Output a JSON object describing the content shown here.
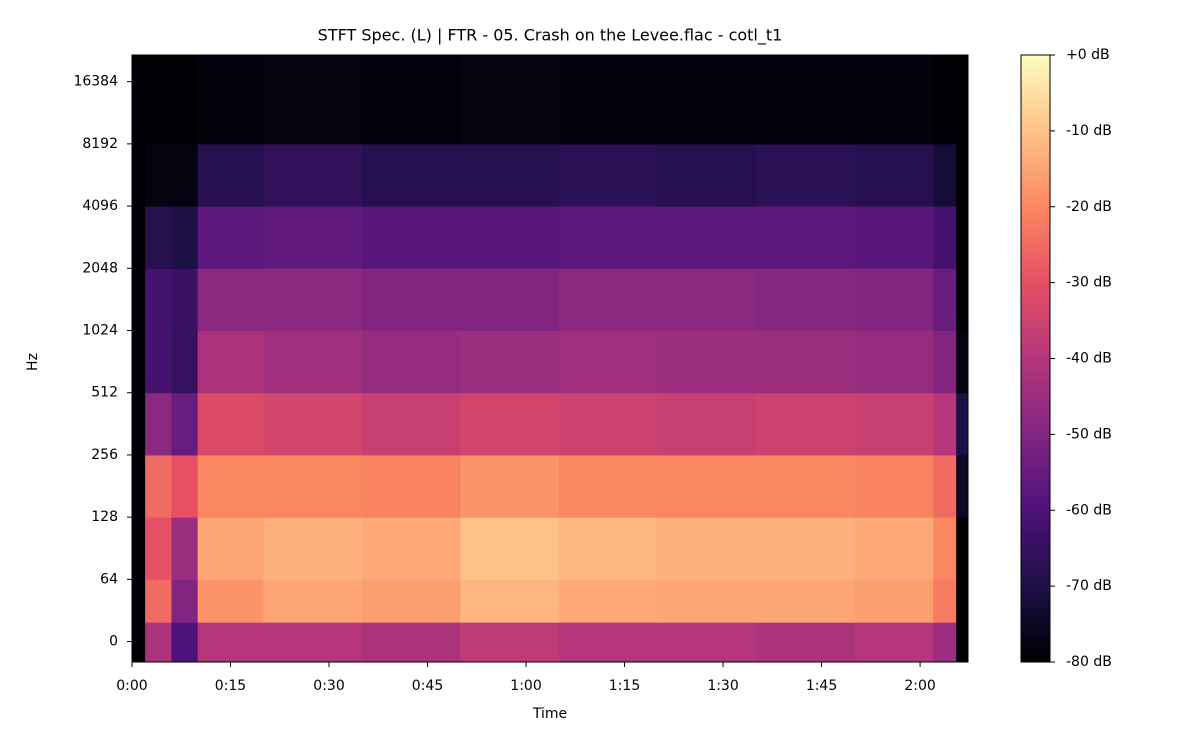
{
  "chart_data": {
    "type": "heatmap",
    "title": "STFT Spec. (L) | FTR - 05. Crash on the Levee.flac - cotl_t1",
    "xlabel": "Time",
    "ylabel": "Hz",
    "xlim": [
      0,
      127.3
    ],
    "xticks": [
      {
        "value": 0,
        "label": "0:00"
      },
      {
        "value": 15,
        "label": "0:15"
      },
      {
        "value": 30,
        "label": "0:30"
      },
      {
        "value": 45,
        "label": "0:45"
      },
      {
        "value": 60,
        "label": "1:00"
      },
      {
        "value": 75,
        "label": "1:15"
      },
      {
        "value": 90,
        "label": "1:30"
      },
      {
        "value": 105,
        "label": "1:45"
      },
      {
        "value": 120,
        "label": "2:00"
      }
    ],
    "ylim": [
      -21,
      22050
    ],
    "yscale": "symlog",
    "linthresh": 64,
    "base": 2,
    "yticks": [
      0,
      64,
      128,
      256,
      512,
      1024,
      2048,
      4096,
      8192,
      16384
    ],
    "x_edges": [
      0,
      2,
      6,
      10,
      20,
      35,
      50,
      65,
      80,
      95,
      110,
      122,
      125.5,
      127.3
    ],
    "y_edges": [
      -21,
      20,
      64,
      128,
      256,
      512,
      1024,
      2048,
      4096,
      8192,
      22050
    ],
    "z": [
      [
        -80,
        -42,
        -60,
        -40,
        -40,
        -42,
        -38,
        -40,
        -40,
        -42,
        -40,
        -45,
        -80
      ],
      [
        -80,
        -25,
        -50,
        -18,
        -15,
        -16,
        -12,
        -14,
        -15,
        -15,
        -16,
        -22,
        -80
      ],
      [
        -80,
        -30,
        -45,
        -15,
        -13,
        -14,
        -10,
        -12,
        -13,
        -13,
        -14,
        -20,
        -80
      ],
      [
        -80,
        -25,
        -30,
        -20,
        -20,
        -21,
        -18,
        -20,
        -20,
        -20,
        -21,
        -25,
        -75
      ],
      [
        -80,
        -48,
        -55,
        -32,
        -34,
        -36,
        -34,
        -35,
        -36,
        -35,
        -36,
        -40,
        -70
      ],
      [
        -80,
        -62,
        -65,
        -42,
        -44,
        -46,
        -45,
        -44,
        -45,
        -45,
        -46,
        -50,
        -78
      ],
      [
        -80,
        -62,
        -64,
        -48,
        -48,
        -50,
        -50,
        -48,
        -48,
        -49,
        -50,
        -55,
        -80
      ],
      [
        -80,
        -68,
        -70,
        -57,
        -56,
        -58,
        -58,
        -57,
        -57,
        -57,
        -58,
        -62,
        -80
      ],
      [
        -80,
        -78,
        -78,
        -68,
        -66,
        -68,
        -68,
        -67,
        -68,
        -67,
        -68,
        -72,
        -80
      ],
      [
        -80,
        -80,
        -80,
        -79,
        -78,
        -79,
        -78,
        -79,
        -79,
        -79,
        -79,
        -80,
        -80
      ]
    ],
    "colormap": "magma",
    "clim": [
      -80,
      0
    ],
    "cticks": [
      {
        "value": 0,
        "label": "+0 dB"
      },
      {
        "value": -10,
        "label": "-10 dB"
      },
      {
        "value": -20,
        "label": "-20 dB"
      },
      {
        "value": -30,
        "label": "-30 dB"
      },
      {
        "value": -40,
        "label": "-40 dB"
      },
      {
        "value": -50,
        "label": "-50 dB"
      },
      {
        "value": -60,
        "label": "-60 dB"
      },
      {
        "value": -70,
        "label": "-70 dB"
      },
      {
        "value": -80,
        "label": "-80 dB"
      }
    ]
  }
}
